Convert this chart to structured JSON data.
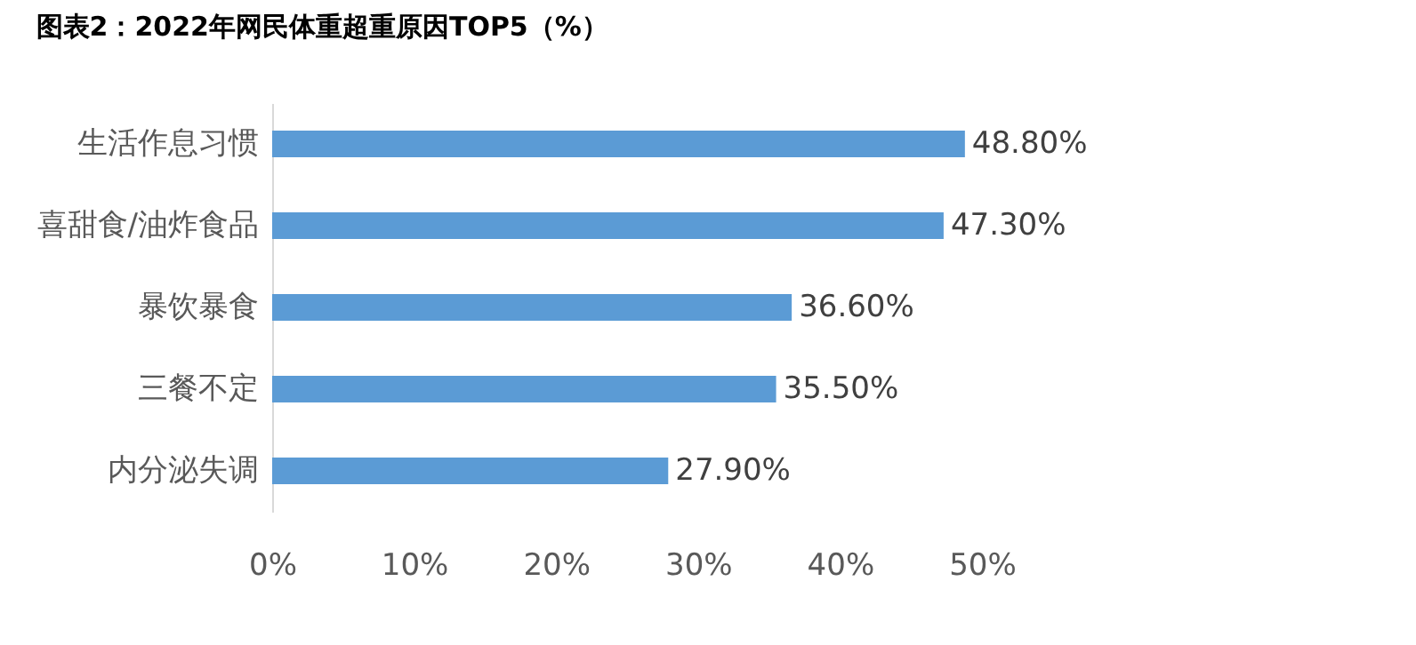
{
  "chart_data": {
    "type": "bar",
    "orientation": "horizontal",
    "title": "图表2：2022年网民体重超重原因TOP5（%）",
    "categories": [
      "生活作息习惯",
      "喜甜食/油炸食品",
      "暴饮暴食",
      "三餐不定",
      "内分泌失调"
    ],
    "values": [
      48.8,
      47.3,
      36.6,
      35.5,
      27.9
    ],
    "value_labels": [
      "48.80%",
      "47.30%",
      "36.60%",
      "35.50%",
      "27.90%"
    ],
    "color": "#5b9bd5",
    "xlim": [
      0,
      50
    ],
    "xticks": [
      {
        "value": 0,
        "label": "0%"
      },
      {
        "value": 10,
        "label": "10%"
      },
      {
        "value": 20,
        "label": "20%"
      },
      {
        "value": 30,
        "label": "30%"
      },
      {
        "value": 40,
        "label": "40%"
      },
      {
        "value": 50,
        "label": "50%"
      }
    ],
    "grid": false
  }
}
